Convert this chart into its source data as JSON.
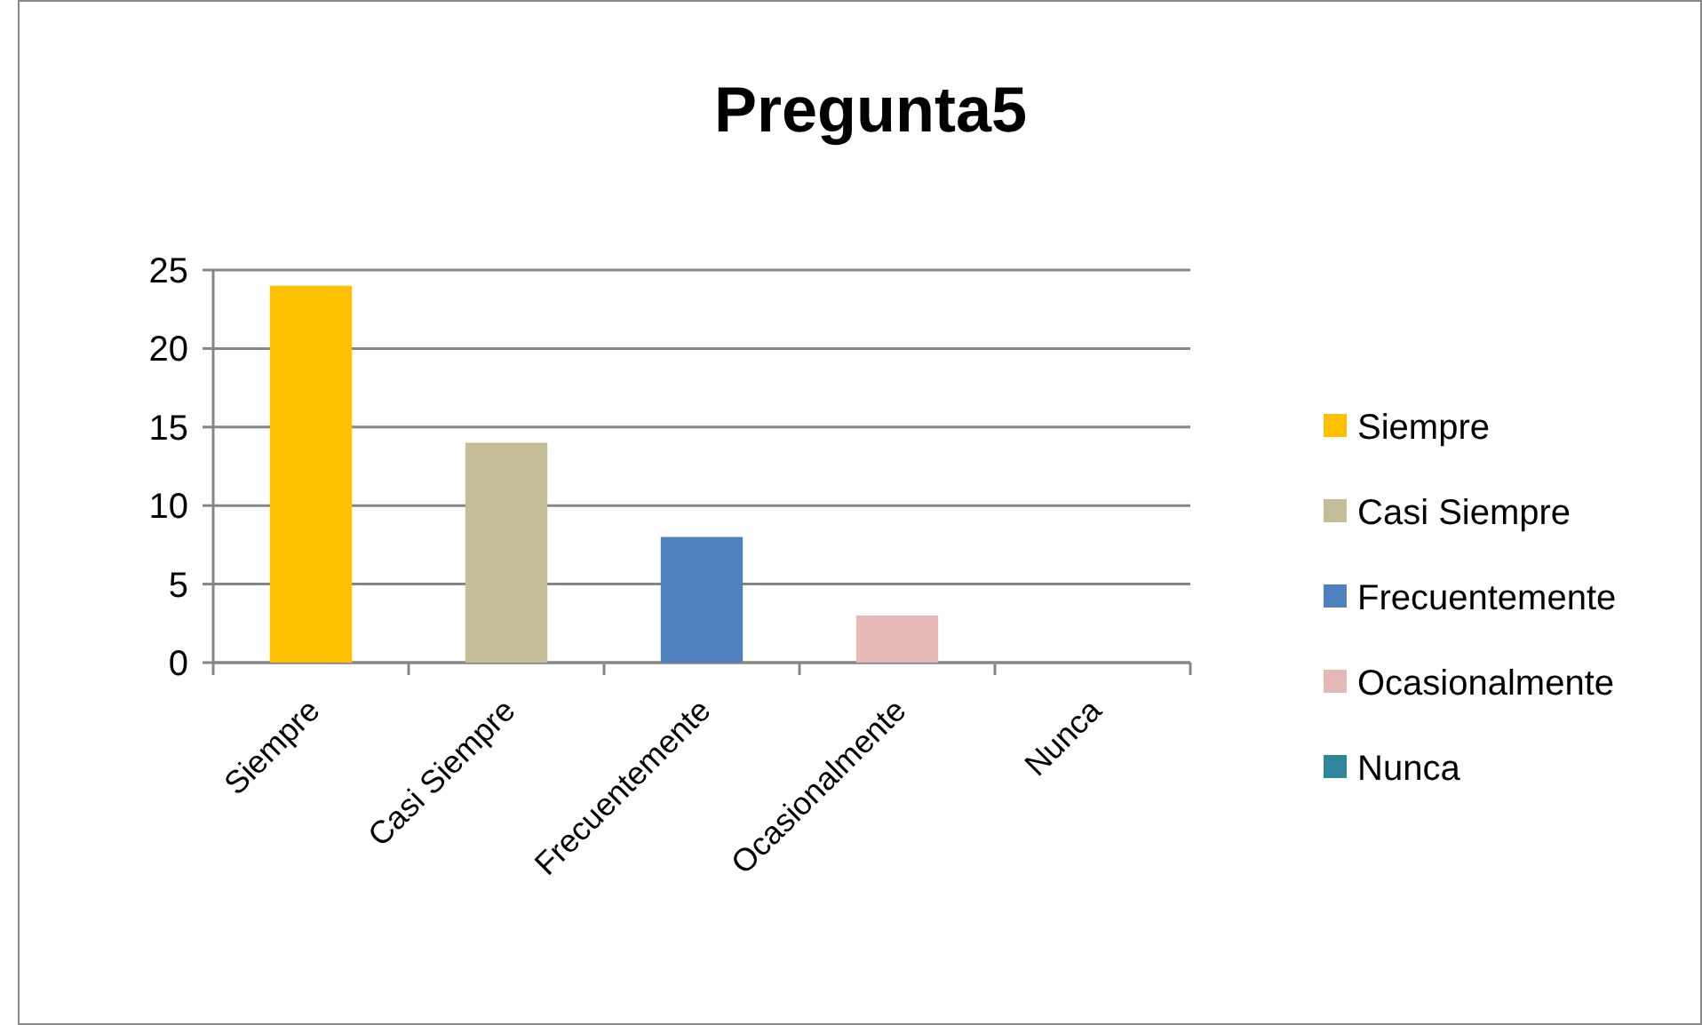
{
  "chart_data": {
    "type": "bar",
    "title": "Pregunta5",
    "categories": [
      "Siempre",
      "Casi Siempre",
      "Frecuentemente",
      "Ocasionalmente",
      "Nunca"
    ],
    "series": [
      {
        "name": "Siempre",
        "color": "#ffc000",
        "values": [
          24,
          null,
          null,
          null,
          null
        ]
      },
      {
        "name": "Casi Siempre",
        "color": "#c4bd97",
        "values": [
          null,
          14,
          null,
          null,
          null
        ]
      },
      {
        "name": "Frecuentemente",
        "color": "#4f81bd",
        "values": [
          null,
          null,
          8,
          null,
          null
        ]
      },
      {
        "name": "Ocasionalmente",
        "color": "#e6b9b8",
        "values": [
          null,
          null,
          null,
          3,
          null
        ]
      },
      {
        "name": "Nunca",
        "color": "#31859c",
        "values": [
          null,
          null,
          null,
          null,
          0
        ]
      }
    ],
    "ylim": [
      0,
      25
    ],
    "yticks": [
      0,
      5,
      10,
      15,
      20,
      25
    ],
    "grid": "y",
    "legend": "right"
  }
}
